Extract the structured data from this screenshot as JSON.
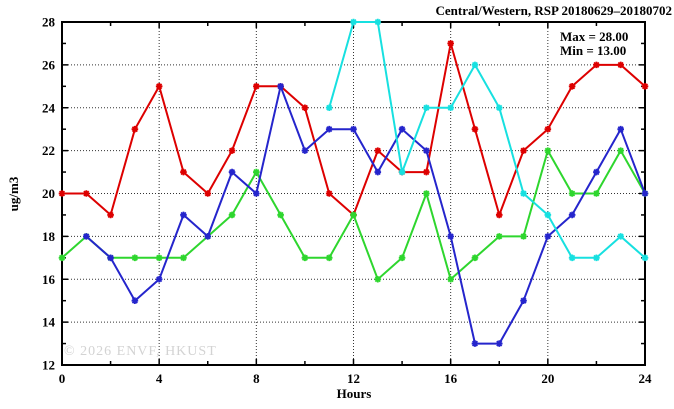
{
  "title": "Central/Western, RSP 20180629–20180702",
  "stats": {
    "max_label": "Max = 28.00",
    "min_label": "Min = 13.00"
  },
  "watermark": "© 2026 ENVF, HKUST",
  "chart_data": {
    "type": "line",
    "title": "Central/Western, RSP 20180629–20180702",
    "xlabel": "Hours",
    "ylabel": "ug/m3",
    "xlim": [
      0,
      24
    ],
    "ylim": [
      12,
      28
    ],
    "x_major_ticks": [
      0,
      4,
      8,
      12,
      16,
      20,
      24
    ],
    "x_minor_ticks": [
      2,
      6,
      10,
      14,
      18,
      22
    ],
    "y_major_ticks": [
      12,
      14,
      16,
      18,
      20,
      22,
      24,
      26,
      28
    ],
    "y_minor_ticks": [
      13,
      15,
      17,
      19,
      21,
      23,
      25,
      27
    ],
    "grid": "dotted-at-major-ticks",
    "legend": "none",
    "marker": "star",
    "colors": {
      "grid": "#333333",
      "border": "#000000",
      "watermark": "#d3d3d3"
    },
    "series": [
      {
        "name": "day-1-red",
        "color": "#dd0000",
        "x": [
          0,
          1,
          2,
          3,
          4,
          5,
          6,
          7,
          8,
          9,
          10,
          11,
          12,
          13,
          14,
          15,
          16,
          17,
          18,
          19,
          20,
          21,
          22,
          23,
          24
        ],
        "y": [
          20,
          20,
          19,
          23,
          25,
          21,
          20,
          22,
          25,
          25,
          24,
          20,
          19,
          22,
          21,
          21,
          27,
          23,
          19,
          22,
          23,
          25,
          26,
          26,
          25
        ]
      },
      {
        "name": "day-2-green",
        "color": "#2ed62e",
        "x": [
          0,
          1,
          2,
          3,
          4,
          5,
          6,
          7,
          8,
          9,
          10,
          11,
          12,
          13,
          14,
          15,
          16,
          17,
          18,
          19,
          20,
          21,
          22,
          23,
          24
        ],
        "y": [
          17,
          18,
          17,
          17,
          17,
          17,
          18,
          19,
          21,
          19,
          17,
          17,
          19,
          16,
          17,
          20,
          16,
          17,
          18,
          18,
          22,
          20,
          20,
          22,
          20
        ]
      },
      {
        "name": "day-3-blue",
        "color": "#2525cc",
        "x": [
          1,
          2,
          3,
          4,
          5,
          6,
          7,
          8,
          9,
          10,
          11,
          12,
          13,
          14,
          15,
          16,
          17,
          18,
          19,
          20,
          21,
          22,
          23,
          24
        ],
        "y": [
          18,
          17,
          15,
          16,
          19,
          18,
          21,
          20,
          25,
          22,
          23,
          23,
          21,
          23,
          22,
          18,
          13,
          13,
          15,
          18,
          19,
          21,
          23,
          20
        ]
      },
      {
        "name": "day-4-cyan",
        "color": "#17e0e0",
        "x": [
          11,
          12,
          13,
          14,
          15,
          16,
          17,
          18,
          19,
          20,
          21,
          22,
          23,
          24
        ],
        "y": [
          24,
          28,
          28,
          21,
          24,
          24,
          26,
          24,
          20,
          19,
          17,
          17,
          18,
          17
        ]
      }
    ]
  }
}
